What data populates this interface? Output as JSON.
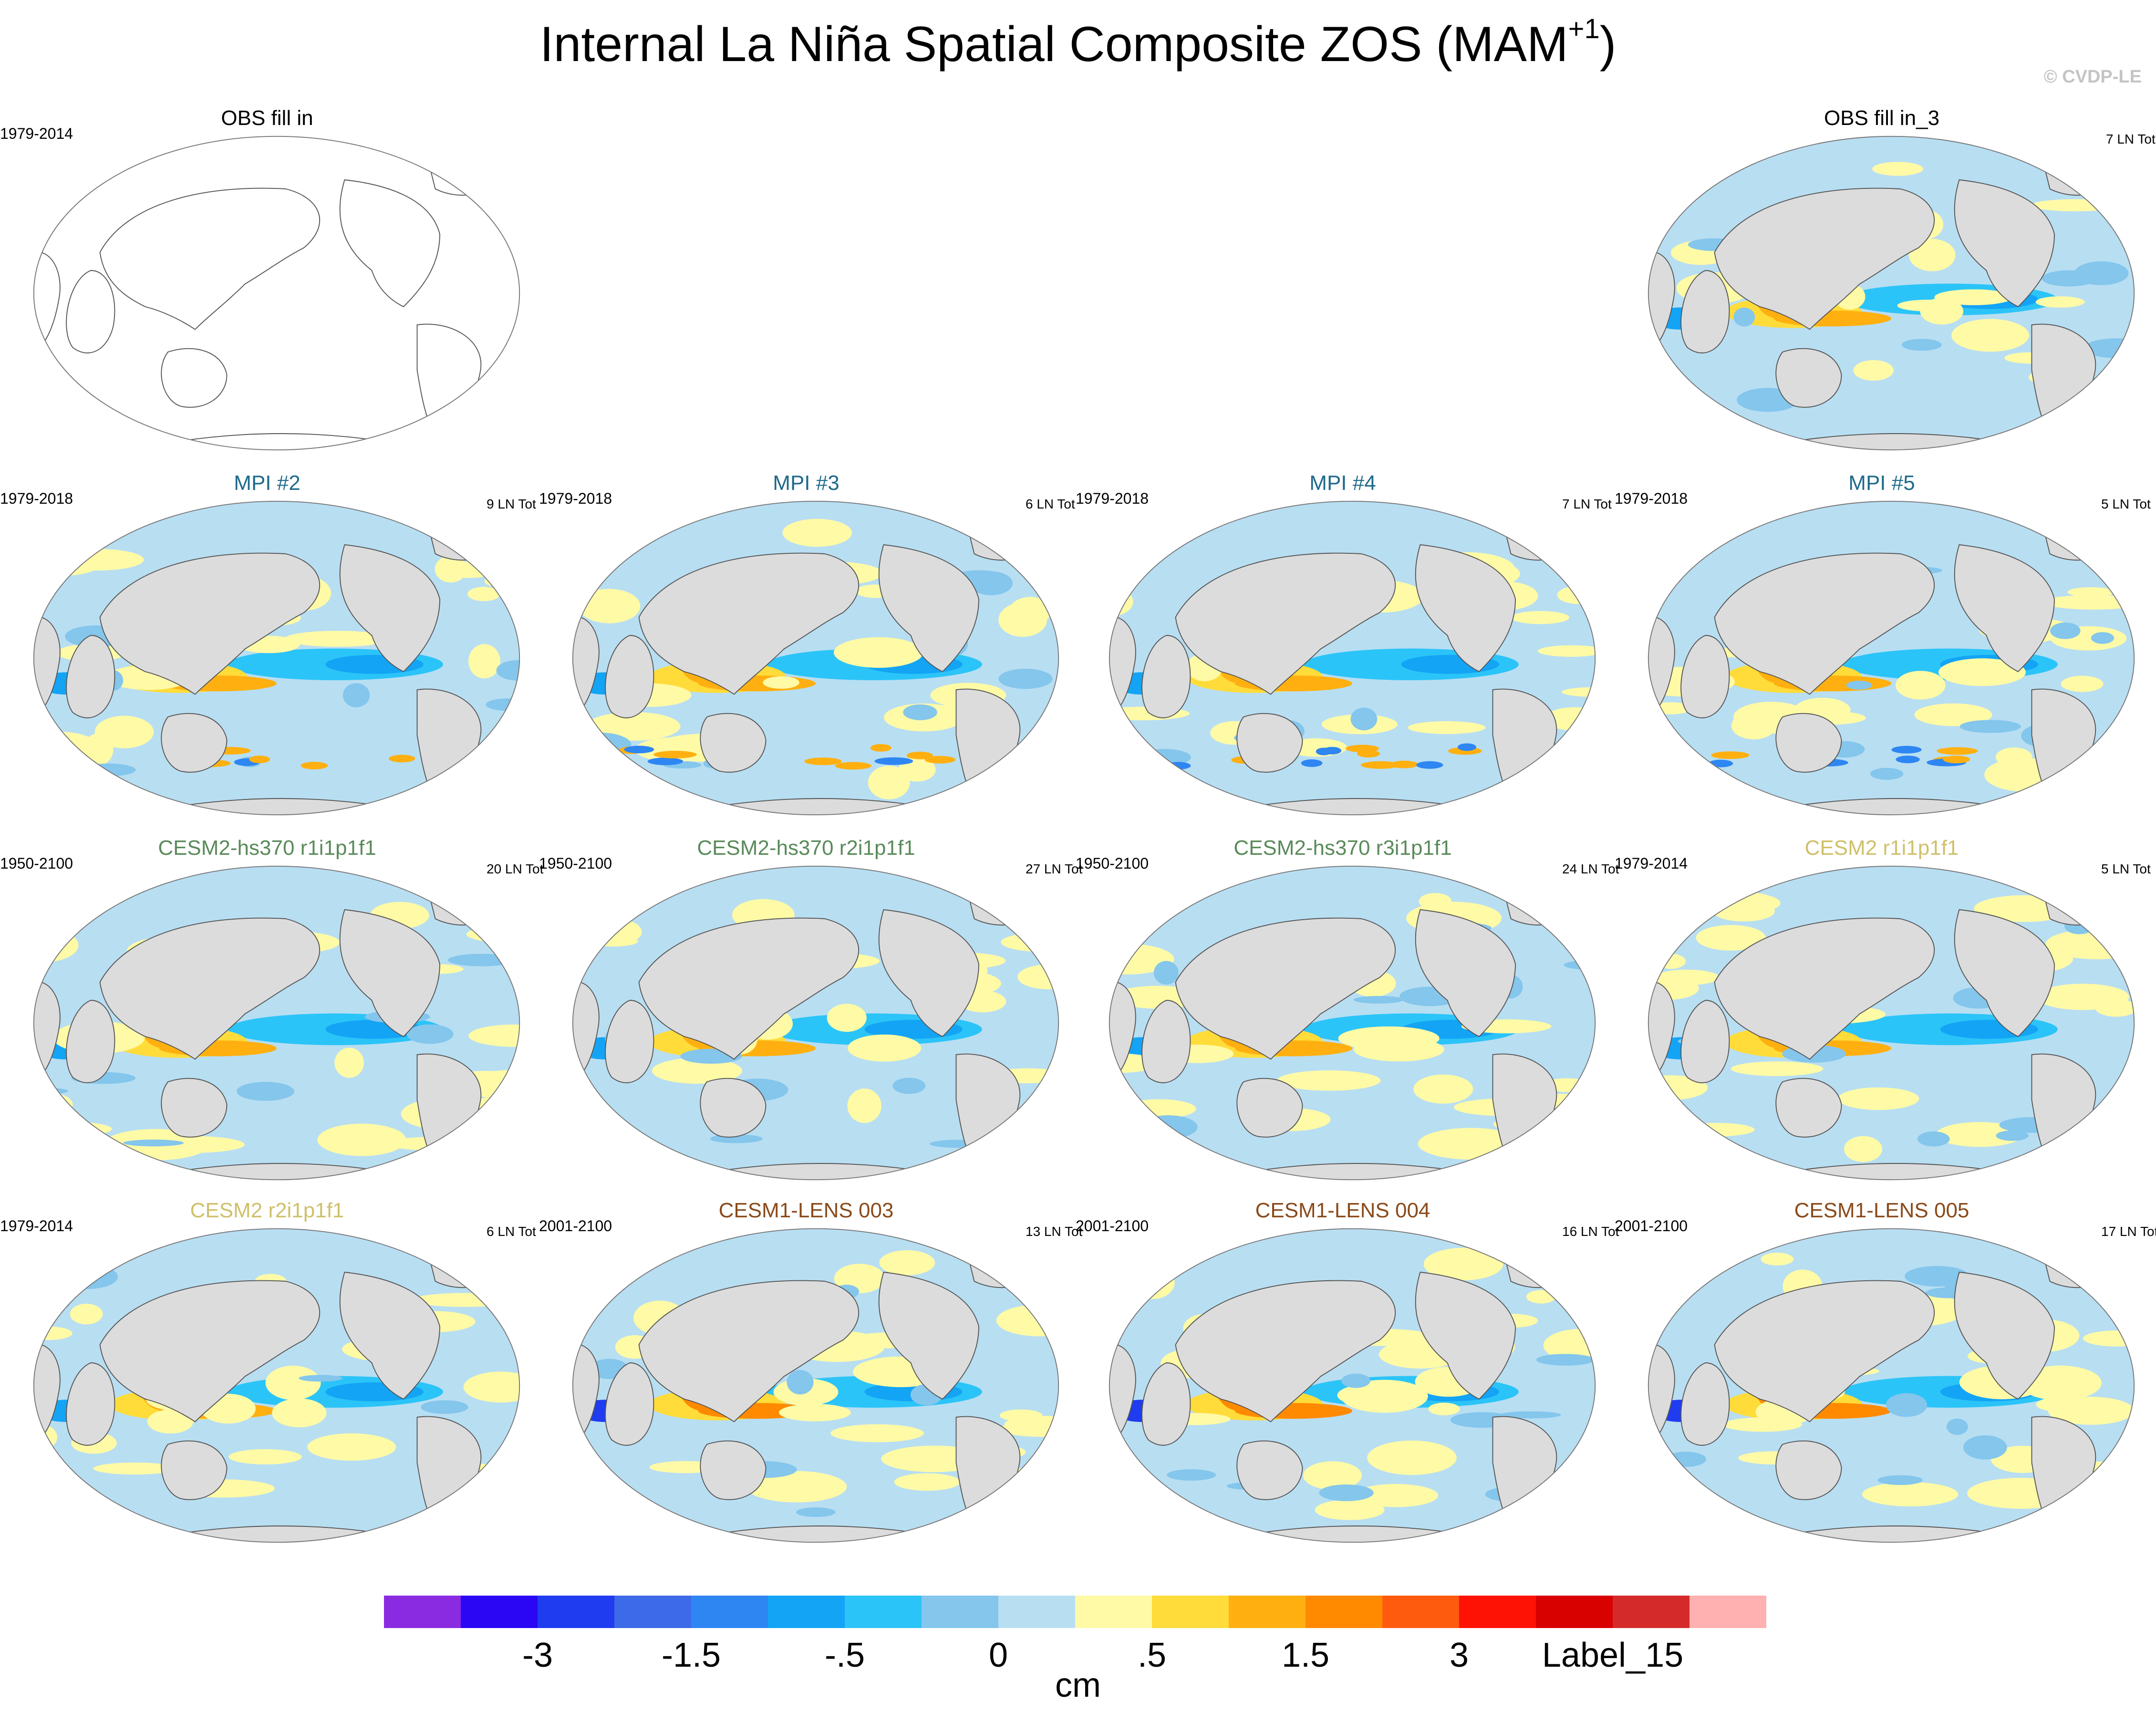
{
  "figure": {
    "title_main": "Internal La Niña Spatial Composite ZOS (MAM",
    "title_sup": "+1",
    "title_close": ")",
    "credit": "© CVDP-LE"
  },
  "colors": {
    "land": "#dcdcdc",
    "ocean_background": "#b8def2",
    "coast": "#555555",
    "levels": [
      "#8a2be2",
      "#2a06f5",
      "#1f3cf0",
      "#3d6ae8",
      "#2e86f2",
      "#13a4f5",
      "#2bc4f8",
      "#84c6ec",
      "#b8def2",
      "#fffaa6",
      "#ffdc3a",
      "#ffb010",
      "#ff8a00",
      "#ff5b0f",
      "#ff1206",
      "#d90000",
      "#d42a2a",
      "#ffb0b0"
    ]
  },
  "panels": [
    {
      "title": "OBS fill in",
      "years": "1979-2014",
      "count": "",
      "title_color": "#000000",
      "style": "outline"
    },
    {
      "title": "OBS fill in_3",
      "years": "",
      "count": "7 LN Tot",
      "title_color": "#000000",
      "style": "filled"
    },
    {
      "title": "MPI #2",
      "years": "1979-2018",
      "count": "9 LN Tot",
      "title_color": "#1f6a8a",
      "style": "filled"
    },
    {
      "title": "MPI #3",
      "years": "1979-2018",
      "count": "6 LN Tot",
      "title_color": "#1f6a8a",
      "style": "filled"
    },
    {
      "title": "MPI #4",
      "years": "1979-2018",
      "count": "7 LN Tot",
      "title_color": "#1f6a8a",
      "style": "filled"
    },
    {
      "title": "MPI #5",
      "years": "1979-2018",
      "count": "5 LN Tot",
      "title_color": "#1f6a8a",
      "style": "filled"
    },
    {
      "title": "CESM2-hs370 r1i1p1f1",
      "years": "1950-2100",
      "count": "20 LN Tot",
      "title_color": "#5a8a5a",
      "style": "filled"
    },
    {
      "title": "CESM2-hs370 r2i1p1f1",
      "years": "1950-2100",
      "count": "27 LN Tot",
      "title_color": "#5a8a5a",
      "style": "filled"
    },
    {
      "title": "CESM2-hs370 r3i1p1f1",
      "years": "1950-2100",
      "count": "24 LN Tot",
      "title_color": "#5a8a5a",
      "style": "filled"
    },
    {
      "title": "CESM2 r1i1p1f1",
      "years": "1979-2014",
      "count": "5 LN Tot",
      "title_color": "#cfc06a",
      "style": "filled"
    },
    {
      "title": "CESM2 r2i1p1f1",
      "years": "1979-2014",
      "count": "6 LN Tot",
      "title_color": "#cfc06a",
      "style": "filled"
    },
    {
      "title": "CESM1-LENS 003",
      "years": "2001-2100",
      "count": "13 LN Tot",
      "title_color": "#8a4a1a",
      "style": "filled"
    },
    {
      "title": "CESM1-LENS 004",
      "years": "2001-2100",
      "count": "16 LN Tot",
      "title_color": "#8a4a1a",
      "style": "filled"
    },
    {
      "title": "CESM1-LENS 005",
      "years": "2001-2100",
      "count": "17 LN Tot",
      "title_color": "#8a4a1a",
      "style": "filled"
    }
  ],
  "colorbar": {
    "labels": [
      "-3",
      "-1.5",
      "-.5",
      "0",
      ".5",
      "1.5",
      "3",
      "Label_15"
    ],
    "label_boundaries": [
      2,
      4,
      6,
      8,
      10,
      12,
      14,
      16
    ],
    "units": "cm"
  }
}
